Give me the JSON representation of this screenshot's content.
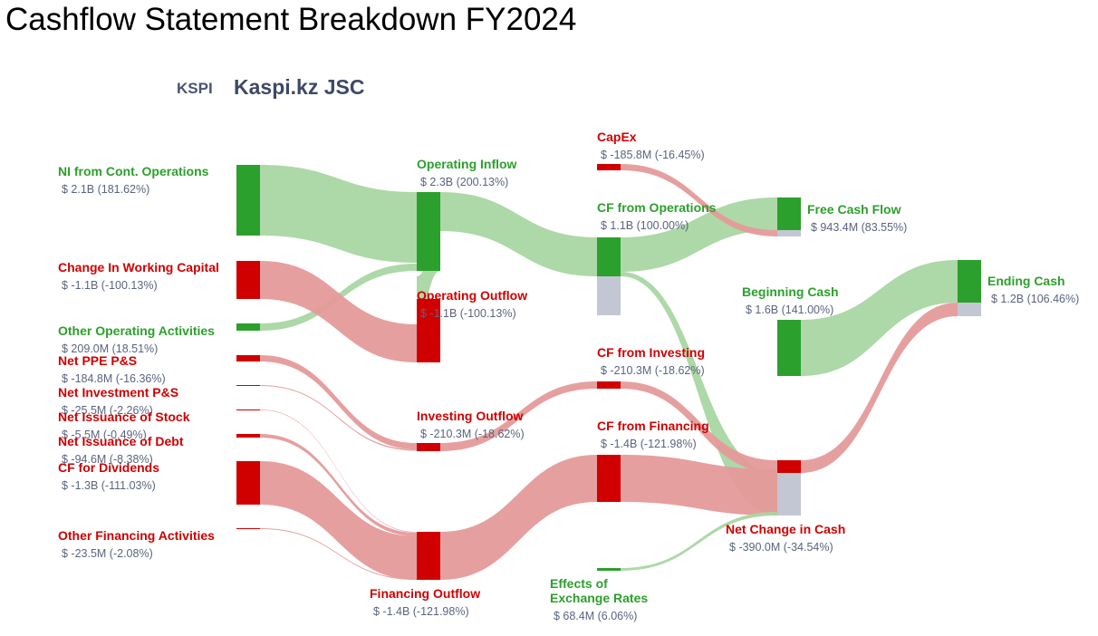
{
  "title": "Cashflow Statement Breakdown FY2024",
  "ticker": "KSPI",
  "company": "Kaspi.kz JSC",
  "colors": {
    "positive_node": "#2ca02c",
    "negative_node": "#d00000",
    "neutral_node": "#c3c7d3",
    "positive_link": "#a9d6a2",
    "negative_link": "#e59a9a",
    "positive_text": "#2ca02c",
    "negative_text": "#d00000",
    "value_text": "#5a6480"
  },
  "chart_data": {
    "type": "sankey",
    "units": "USD",
    "nodes": [
      {
        "id": "ni",
        "name": "NI from Cont. Operations",
        "value_label": "$ 2.1B (181.62%)",
        "value": 2.1,
        "sign": "positive",
        "column": 0
      },
      {
        "id": "wc",
        "name": "Change In Working Capital",
        "value_label": "$ -1.1B (-100.13%)",
        "value": -1.1,
        "sign": "negative",
        "column": 0
      },
      {
        "id": "ooa",
        "name": "Other Operating Activities",
        "value_label": "$ 209.0M (18.51%)",
        "value": 0.209,
        "sign": "positive",
        "column": 0
      },
      {
        "id": "ppe",
        "name": "Net PPE P&S",
        "value_label": "$ -184.8M (-16.36%)",
        "value": -0.1848,
        "sign": "negative",
        "column": 0
      },
      {
        "id": "inv",
        "name": "Net Investment P&S",
        "value_label": "$ -25.5M (-2.26%)",
        "value": -0.0255,
        "sign": "negative",
        "column": 0
      },
      {
        "id": "stock",
        "name": "Net Issuance of Stock",
        "value_label": "$ -5.5M (-0.49%)",
        "value": -0.0055,
        "sign": "negative",
        "column": 0
      },
      {
        "id": "debt",
        "name": "Net Issuance of Debt",
        "value_label": "$ -94.6M (-8.38%)",
        "value": -0.0946,
        "sign": "negative",
        "column": 0
      },
      {
        "id": "div",
        "name": "CF for Dividends",
        "value_label": "$ -1.3B (-111.03%)",
        "value": -1.3,
        "sign": "negative",
        "column": 0
      },
      {
        "id": "ofa",
        "name": "Other Financing Activities",
        "value_label": "$ -23.5M (-2.08%)",
        "value": -0.0235,
        "sign": "negative",
        "column": 0
      },
      {
        "id": "opin",
        "name": "Operating Inflow",
        "value_label": "$ 2.3B (200.13%)",
        "value": 2.3,
        "sign": "positive",
        "column": 1
      },
      {
        "id": "opout",
        "name": "Operating Outflow",
        "value_label": "$ -1.1B (-100.13%)",
        "value": -1.1,
        "sign": "negative",
        "column": 1
      },
      {
        "id": "invout",
        "name": "Investing Outflow",
        "value_label": "$ -210.3M (-18.62%)",
        "value": -0.2103,
        "sign": "negative",
        "column": 1
      },
      {
        "id": "finout",
        "name": "Financing Outflow",
        "value_label": "$ -1.4B (-121.98%)",
        "value": -1.4,
        "sign": "negative",
        "column": 1
      },
      {
        "id": "capex",
        "name": "CapEx",
        "value_label": "$ -185.8M (-16.45%)",
        "value": -0.1858,
        "sign": "negative",
        "column": 2
      },
      {
        "id": "cfo",
        "name": "CF from Operations",
        "value_label": "$ 1.1B (100.00%)",
        "value": 1.1,
        "sign": "positive",
        "column": 2
      },
      {
        "id": "cfi",
        "name": "CF from Investing",
        "value_label": "$ -210.3M (-18.62%)",
        "value": -0.2103,
        "sign": "negative",
        "column": 2
      },
      {
        "id": "cff",
        "name": "CF from Financing",
        "value_label": "$ -1.4B (-121.98%)",
        "value": -1.4,
        "sign": "negative",
        "column": 2
      },
      {
        "id": "fx",
        "name": "Effects of Exchange Rates",
        "name_lines": [
          "Effects of",
          "Exchange Rates"
        ],
        "value_label": "$ 68.4M (6.06%)",
        "value": 0.0684,
        "sign": "positive",
        "column": 2
      },
      {
        "id": "fcf",
        "name": "Free Cash Flow",
        "value_label": "$ 943.4M (83.55%)",
        "value": 0.9434,
        "sign": "positive",
        "column": 3
      },
      {
        "id": "begin",
        "name": "Beginning Cash",
        "value_label": "$ 1.6B (141.00%)",
        "value": 1.6,
        "sign": "positive",
        "column": 3
      },
      {
        "id": "nc",
        "name": "Net Change in Cash",
        "value_label": "$ -390.0M (-34.54%)",
        "value": -0.39,
        "sign": "negative",
        "column": 3
      },
      {
        "id": "end",
        "name": "Ending Cash",
        "value_label": "$ 1.2B (106.46%)",
        "value": 1.2,
        "sign": "positive",
        "column": 4
      }
    ],
    "links": [
      {
        "source": "ni",
        "target": "opin",
        "value": 2.1,
        "sign": "positive"
      },
      {
        "source": "ooa",
        "target": "opin",
        "value": 0.209,
        "sign": "positive"
      },
      {
        "source": "wc",
        "target": "opout",
        "value": 1.1,
        "sign": "negative"
      },
      {
        "source": "ppe",
        "target": "invout",
        "value": 0.1848,
        "sign": "negative"
      },
      {
        "source": "inv",
        "target": "invout",
        "value": 0.0255,
        "sign": "negative"
      },
      {
        "source": "stock",
        "target": "finout",
        "value": 0.0055,
        "sign": "negative"
      },
      {
        "source": "debt",
        "target": "finout",
        "value": 0.0946,
        "sign": "negative"
      },
      {
        "source": "div",
        "target": "finout",
        "value": 1.3,
        "sign": "negative"
      },
      {
        "source": "ofa",
        "target": "finout",
        "value": 0.0235,
        "sign": "negative"
      },
      {
        "source": "opin",
        "target": "cfo",
        "value": 1.1,
        "sign": "positive"
      },
      {
        "source": "opin",
        "target": "opout",
        "value": 1.1,
        "sign": "positive"
      },
      {
        "source": "invout",
        "target": "cfi",
        "value": 0.2103,
        "sign": "negative"
      },
      {
        "source": "finout",
        "target": "cff",
        "value": 1.4,
        "sign": "negative"
      },
      {
        "source": "cfo",
        "target": "fcf",
        "value": 0.9434,
        "sign": "positive"
      },
      {
        "source": "cfo",
        "target": "nc",
        "value": 0.39,
        "sign": "positive"
      },
      {
        "source": "capex",
        "target": "fcf",
        "value": 0.1858,
        "sign": "negative"
      },
      {
        "source": "cfi",
        "target": "nc",
        "value": 0.2103,
        "sign": "negative"
      },
      {
        "source": "cff",
        "target": "nc",
        "value": 1.4,
        "sign": "negative"
      },
      {
        "source": "fx",
        "target": "nc",
        "value": 0.0684,
        "sign": "positive"
      },
      {
        "source": "begin",
        "target": "end",
        "value": 1.6,
        "sign": "positive"
      },
      {
        "source": "nc",
        "target": "end",
        "value": 0.39,
        "sign": "negative"
      }
    ]
  }
}
